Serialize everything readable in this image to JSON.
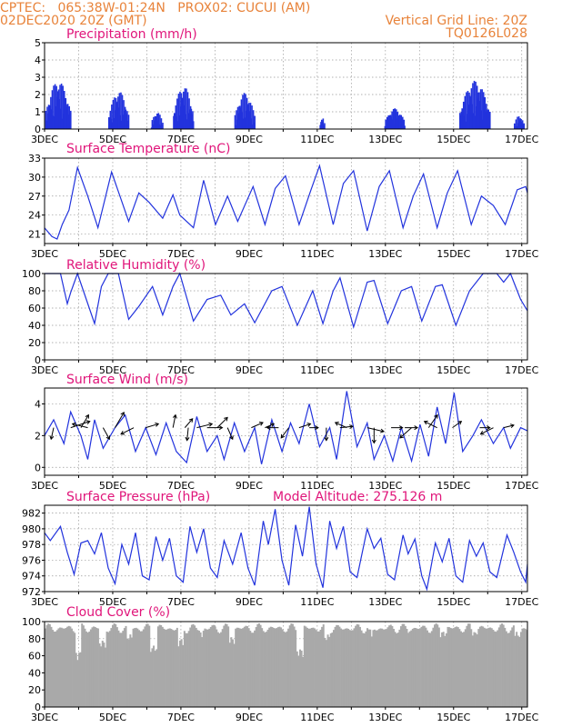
{
  "header": {
    "line1_left": "CPTEC:   065:38W-01:24N   PROX02: CUCUI (AM)",
    "line2_left": "02DEC2020 20Z (GMT)",
    "line2_right": "Vertical Grid Line: 20Z",
    "line3_right": "TQ0126L028"
  },
  "colors": {
    "header": "#e8833a",
    "title": "#e0157a",
    "line": "#2233dd",
    "cloud": "#a9a9a9",
    "grid": "#999999"
  },
  "x_axis_labels": [
    "3DEC",
    "5DEC",
    "7DEC",
    "9DEC",
    "11DEC",
    "13DEC",
    "15DEC",
    "17DEC"
  ],
  "chart_data": [
    {
      "type": "bar",
      "title": "Precipitation (mm/h)",
      "ylim": [
        0,
        5
      ],
      "yticks": [
        0,
        1,
        2,
        3,
        4,
        5
      ],
      "grid": true,
      "xlim_days": [
        2.833,
        17.0
      ],
      "clusters": [
        {
          "start": 2.85,
          "end": 3.6,
          "peak": 2.8
        },
        {
          "start": 4.7,
          "end": 5.3,
          "peak": 2.2
        },
        {
          "start": 5.95,
          "end": 6.3,
          "peak": 1.0
        },
        {
          "start": 6.6,
          "end": 7.2,
          "peak": 2.5
        },
        {
          "start": 8.4,
          "end": 9.0,
          "peak": 2.1
        },
        {
          "start": 10.9,
          "end": 11.05,
          "peak": 0.7
        },
        {
          "start": 12.8,
          "end": 13.4,
          "peak": 1.2
        },
        {
          "start": 15.0,
          "end": 15.9,
          "peak": 2.8
        },
        {
          "start": 16.6,
          "end": 16.9,
          "peak": 0.8
        }
      ]
    },
    {
      "type": "line",
      "title": "Surface Temperature (nC)",
      "ylim": [
        19.5,
        33
      ],
      "yticks": [
        21,
        24,
        27,
        30,
        33
      ],
      "grid": true,
      "xlim_days": [
        2.833,
        17.0
      ],
      "points": [
        [
          2.83,
          22.0
        ],
        [
          3.05,
          20.6
        ],
        [
          3.2,
          20.2
        ],
        [
          3.35,
          22.5
        ],
        [
          3.55,
          24.8
        ],
        [
          3.8,
          31.5
        ],
        [
          4.1,
          27.0
        ],
        [
          4.4,
          22.0
        ],
        [
          4.8,
          30.8
        ],
        [
          5.3,
          23.0
        ],
        [
          5.6,
          27.5
        ],
        [
          5.9,
          26.0
        ],
        [
          6.3,
          23.5
        ],
        [
          6.6,
          27.2
        ],
        [
          6.8,
          24.0
        ],
        [
          7.2,
          22.0
        ],
        [
          7.5,
          29.5
        ],
        [
          7.85,
          22.5
        ],
        [
          8.2,
          27.0
        ],
        [
          8.5,
          23.0
        ],
        [
          8.95,
          28.5
        ],
        [
          9.3,
          22.5
        ],
        [
          9.6,
          28.2
        ],
        [
          9.9,
          30.2
        ],
        [
          10.3,
          22.5
        ],
        [
          10.65,
          28.0
        ],
        [
          10.9,
          31.8
        ],
        [
          11.3,
          22.5
        ],
        [
          11.6,
          29.0
        ],
        [
          11.9,
          31.0
        ],
        [
          12.3,
          21.5
        ],
        [
          12.65,
          28.5
        ],
        [
          12.95,
          31.0
        ],
        [
          13.35,
          22.0
        ],
        [
          13.65,
          27.0
        ],
        [
          13.95,
          30.5
        ],
        [
          14.35,
          22.0
        ],
        [
          14.65,
          27.5
        ],
        [
          14.95,
          31.0
        ],
        [
          15.35,
          22.5
        ],
        [
          15.65,
          27.0
        ],
        [
          16.0,
          25.5
        ],
        [
          16.35,
          22.5
        ],
        [
          16.7,
          28.0
        ],
        [
          16.95,
          28.5
        ],
        [
          17.0,
          27.5
        ]
      ]
    },
    {
      "type": "line",
      "title": "Relative Humidity (%)",
      "ylim": [
        0,
        100
      ],
      "yticks": [
        0,
        20,
        40,
        60,
        80,
        100
      ],
      "grid": true,
      "xlim_days": [
        2.833,
        17.0
      ],
      "points": [
        [
          2.83,
          100
        ],
        [
          3.3,
          100
        ],
        [
          3.5,
          65
        ],
        [
          3.6,
          78
        ],
        [
          3.8,
          100
        ],
        [
          4.3,
          42
        ],
        [
          4.5,
          85
        ],
        [
          4.7,
          100
        ],
        [
          5.0,
          100
        ],
        [
          5.3,
          47
        ],
        [
          5.6,
          62
        ],
        [
          6.0,
          85
        ],
        [
          6.3,
          52
        ],
        [
          6.6,
          85
        ],
        [
          6.8,
          100
        ],
        [
          7.2,
          45
        ],
        [
          7.6,
          70
        ],
        [
          8.0,
          75
        ],
        [
          8.3,
          52
        ],
        [
          8.7,
          65
        ],
        [
          9.0,
          43
        ],
        [
          9.5,
          80
        ],
        [
          9.8,
          85
        ],
        [
          10.25,
          40
        ],
        [
          10.7,
          80
        ],
        [
          11.0,
          42
        ],
        [
          11.3,
          80
        ],
        [
          11.5,
          95
        ],
        [
          11.9,
          38
        ],
        [
          12.3,
          90
        ],
        [
          12.5,
          92
        ],
        [
          12.9,
          42
        ],
        [
          13.3,
          80
        ],
        [
          13.6,
          85
        ],
        [
          13.9,
          45
        ],
        [
          14.3,
          85
        ],
        [
          14.5,
          87
        ],
        [
          14.9,
          40
        ],
        [
          15.3,
          80
        ],
        [
          15.7,
          100
        ],
        [
          16.1,
          100
        ],
        [
          16.3,
          90
        ],
        [
          16.5,
          100
        ],
        [
          16.8,
          70
        ],
        [
          17.0,
          57
        ]
      ]
    },
    {
      "type": "line",
      "title": "Surface Wind (m/s)",
      "ylim": [
        -0.5,
        5.0
      ],
      "yticks": [
        0,
        2,
        4
      ],
      "grid": true,
      "xlim_days": [
        2.833,
        17.0
      ],
      "points": [
        [
          2.83,
          2.0
        ],
        [
          3.1,
          3.0
        ],
        [
          3.4,
          1.5
        ],
        [
          3.6,
          3.5
        ],
        [
          3.9,
          2.0
        ],
        [
          4.1,
          0.5
        ],
        [
          4.3,
          3.0
        ],
        [
          4.55,
          1.2
        ],
        [
          4.9,
          2.5
        ],
        [
          5.2,
          3.3
        ],
        [
          5.5,
          1.0
        ],
        [
          5.8,
          2.5
        ],
        [
          6.1,
          0.8
        ],
        [
          6.4,
          2.8
        ],
        [
          6.7,
          1.0
        ],
        [
          7.0,
          0.3
        ],
        [
          7.3,
          3.2
        ],
        [
          7.6,
          1.0
        ],
        [
          7.9,
          2.0
        ],
        [
          8.1,
          0.5
        ],
        [
          8.4,
          2.8
        ],
        [
          8.7,
          1.0
        ],
        [
          9.0,
          2.5
        ],
        [
          9.2,
          0.2
        ],
        [
          9.5,
          3.0
        ],
        [
          9.8,
          1.0
        ],
        [
          10.05,
          2.8
        ],
        [
          10.3,
          1.5
        ],
        [
          10.6,
          4.0
        ],
        [
          10.9,
          1.3
        ],
        [
          11.2,
          2.5
        ],
        [
          11.4,
          0.5
        ],
        [
          11.7,
          4.8
        ],
        [
          12.0,
          1.3
        ],
        [
          12.3,
          2.8
        ],
        [
          12.5,
          0.5
        ],
        [
          12.8,
          2.0
        ],
        [
          13.05,
          0.4
        ],
        [
          13.3,
          2.5
        ],
        [
          13.6,
          0.4
        ],
        [
          13.85,
          2.7
        ],
        [
          14.1,
          0.7
        ],
        [
          14.35,
          3.8
        ],
        [
          14.6,
          1.5
        ],
        [
          14.85,
          4.7
        ],
        [
          15.1,
          1.0
        ],
        [
          15.4,
          2.0
        ],
        [
          15.65,
          3.0
        ],
        [
          16.0,
          1.5
        ],
        [
          16.3,
          2.5
        ],
        [
          16.5,
          1.2
        ],
        [
          16.8,
          2.5
        ],
        [
          17.0,
          2.3
        ]
      ],
      "vectors": [
        [
          3.1,
          180,
          -0.9
        ],
        [
          3.6,
          1.5,
          0.5
        ],
        [
          3.9,
          0.6,
          1.0
        ],
        [
          4.1,
          -1.2,
          0.3
        ],
        [
          4.55,
          0.5,
          -0.9
        ],
        [
          4.9,
          0.7,
          1.2
        ],
        [
          5.45,
          -1.0,
          -0.5
        ],
        [
          5.8,
          1.0,
          0.3
        ],
        [
          6.6,
          0.2,
          1.0
        ],
        [
          6.95,
          0.6,
          0.7
        ],
        [
          7.05,
          -0.1,
          -1.0
        ],
        [
          7.3,
          1.2,
          0.3
        ],
        [
          7.6,
          1.2,
          0.0
        ],
        [
          7.9,
          0.8,
          0.8
        ],
        [
          8.2,
          0.4,
          -0.9
        ],
        [
          8.9,
          0.9,
          0.4
        ],
        [
          9.3,
          0.7,
          0.3
        ],
        [
          9.7,
          -0.9,
          0.0
        ],
        [
          10.0,
          -0.6,
          -0.8
        ],
        [
          10.3,
          0.9,
          0.3
        ],
        [
          10.6,
          0.7,
          0.0
        ],
        [
          11.1,
          0.0,
          -1.0
        ],
        [
          11.5,
          1.0,
          0.1
        ],
        [
          11.7,
          -0.9,
          0.4
        ],
        [
          12.3,
          1.3,
          -0.3
        ],
        [
          12.5,
          0.0,
          -1.2
        ],
        [
          13.0,
          0.9,
          0.0
        ],
        [
          13.4,
          1.0,
          0.0
        ],
        [
          13.6,
          -0.9,
          -0.8
        ],
        [
          14.1,
          0.7,
          1.0
        ],
        [
          14.35,
          -1.0,
          0.5
        ],
        [
          14.8,
          0.7,
          0.5
        ],
        [
          15.6,
          0.8,
          0.0
        ],
        [
          16.0,
          -1.0,
          -0.5
        ],
        [
          16.3,
          0.8,
          0.2
        ]
      ]
    },
    {
      "type": "line",
      "title": "Surface Pressure (hPa)",
      "annotation": "Model Altitude: 275.126 m",
      "ylim": [
        972,
        983
      ],
      "yticks": [
        972,
        974,
        976,
        978,
        980,
        982
      ],
      "grid": true,
      "xlim_days": [
        2.833,
        17.0
      ],
      "points": [
        [
          2.83,
          979.5
        ],
        [
          3.0,
          978.5
        ],
        [
          3.3,
          980.3
        ],
        [
          3.5,
          977.0
        ],
        [
          3.7,
          974.2
        ],
        [
          3.9,
          978.2
        ],
        [
          4.1,
          978.5
        ],
        [
          4.3,
          976.8
        ],
        [
          4.5,
          979.5
        ],
        [
          4.7,
          975.0
        ],
        [
          4.9,
          973.0
        ],
        [
          5.1,
          978.0
        ],
        [
          5.3,
          975.5
        ],
        [
          5.5,
          979.5
        ],
        [
          5.7,
          974.0
        ],
        [
          5.9,
          973.5
        ],
        [
          6.1,
          979.0
        ],
        [
          6.3,
          976.0
        ],
        [
          6.5,
          978.8
        ],
        [
          6.7,
          974.0
        ],
        [
          6.9,
          973.2
        ],
        [
          7.1,
          980.3
        ],
        [
          7.3,
          977.0
        ],
        [
          7.5,
          980.0
        ],
        [
          7.7,
          975.0
        ],
        [
          7.9,
          973.8
        ],
        [
          8.1,
          978.5
        ],
        [
          8.35,
          975.5
        ],
        [
          8.6,
          979.5
        ],
        [
          8.8,
          975.0
        ],
        [
          9.0,
          972.8
        ],
        [
          9.25,
          981.0
        ],
        [
          9.4,
          978.0
        ],
        [
          9.6,
          982.5
        ],
        [
          9.8,
          976.0
        ],
        [
          10.0,
          972.8
        ],
        [
          10.2,
          980.5
        ],
        [
          10.4,
          976.5
        ],
        [
          10.6,
          982.8
        ],
        [
          10.8,
          975.5
        ],
        [
          11.0,
          972.5
        ],
        [
          11.2,
          981.0
        ],
        [
          11.4,
          977.5
        ],
        [
          11.6,
          980.3
        ],
        [
          11.8,
          974.5
        ],
        [
          12.0,
          973.8
        ],
        [
          12.3,
          980.0
        ],
        [
          12.5,
          977.5
        ],
        [
          12.7,
          978.8
        ],
        [
          12.9,
          974.2
        ],
        [
          13.1,
          973.5
        ],
        [
          13.35,
          979.2
        ],
        [
          13.5,
          976.8
        ],
        [
          13.7,
          978.7
        ],
        [
          13.9,
          974.0
        ],
        [
          14.05,
          972.3
        ],
        [
          14.3,
          978.2
        ],
        [
          14.5,
          975.8
        ],
        [
          14.7,
          978.8
        ],
        [
          14.9,
          974.0
        ],
        [
          15.1,
          973.2
        ],
        [
          15.3,
          978.5
        ],
        [
          15.5,
          976.5
        ],
        [
          15.7,
          978.2
        ],
        [
          15.9,
          974.5
        ],
        [
          16.1,
          973.8
        ],
        [
          16.4,
          979.2
        ],
        [
          16.6,
          977.0
        ],
        [
          16.8,
          974.5
        ],
        [
          16.95,
          973.2
        ],
        [
          17.0,
          975.5
        ]
      ]
    },
    {
      "type": "area",
      "title": "Cloud Cover (%)",
      "ylim": [
        0,
        100
      ],
      "yticks": [
        0,
        20,
        40,
        60,
        80,
        100
      ],
      "grid": true,
      "xlim_days": [
        2.833,
        17.0
      ],
      "base_level": 92,
      "dips": [
        [
          3.7,
          3.9,
          55
        ],
        [
          4.4,
          4.6,
          68
        ],
        [
          5.2,
          5.4,
          75
        ],
        [
          5.9,
          6.1,
          62
        ],
        [
          6.7,
          6.9,
          70
        ],
        [
          7.3,
          7.5,
          80
        ],
        [
          8.2,
          8.4,
          72
        ],
        [
          10.2,
          10.4,
          58
        ],
        [
          11.0,
          11.2,
          75
        ],
        [
          12.3,
          12.5,
          82
        ],
        [
          13.4,
          13.6,
          85
        ],
        [
          14.4,
          14.6,
          80
        ],
        [
          15.3,
          15.5,
          82
        ],
        [
          16.6,
          16.8,
          78
        ]
      ]
    }
  ]
}
